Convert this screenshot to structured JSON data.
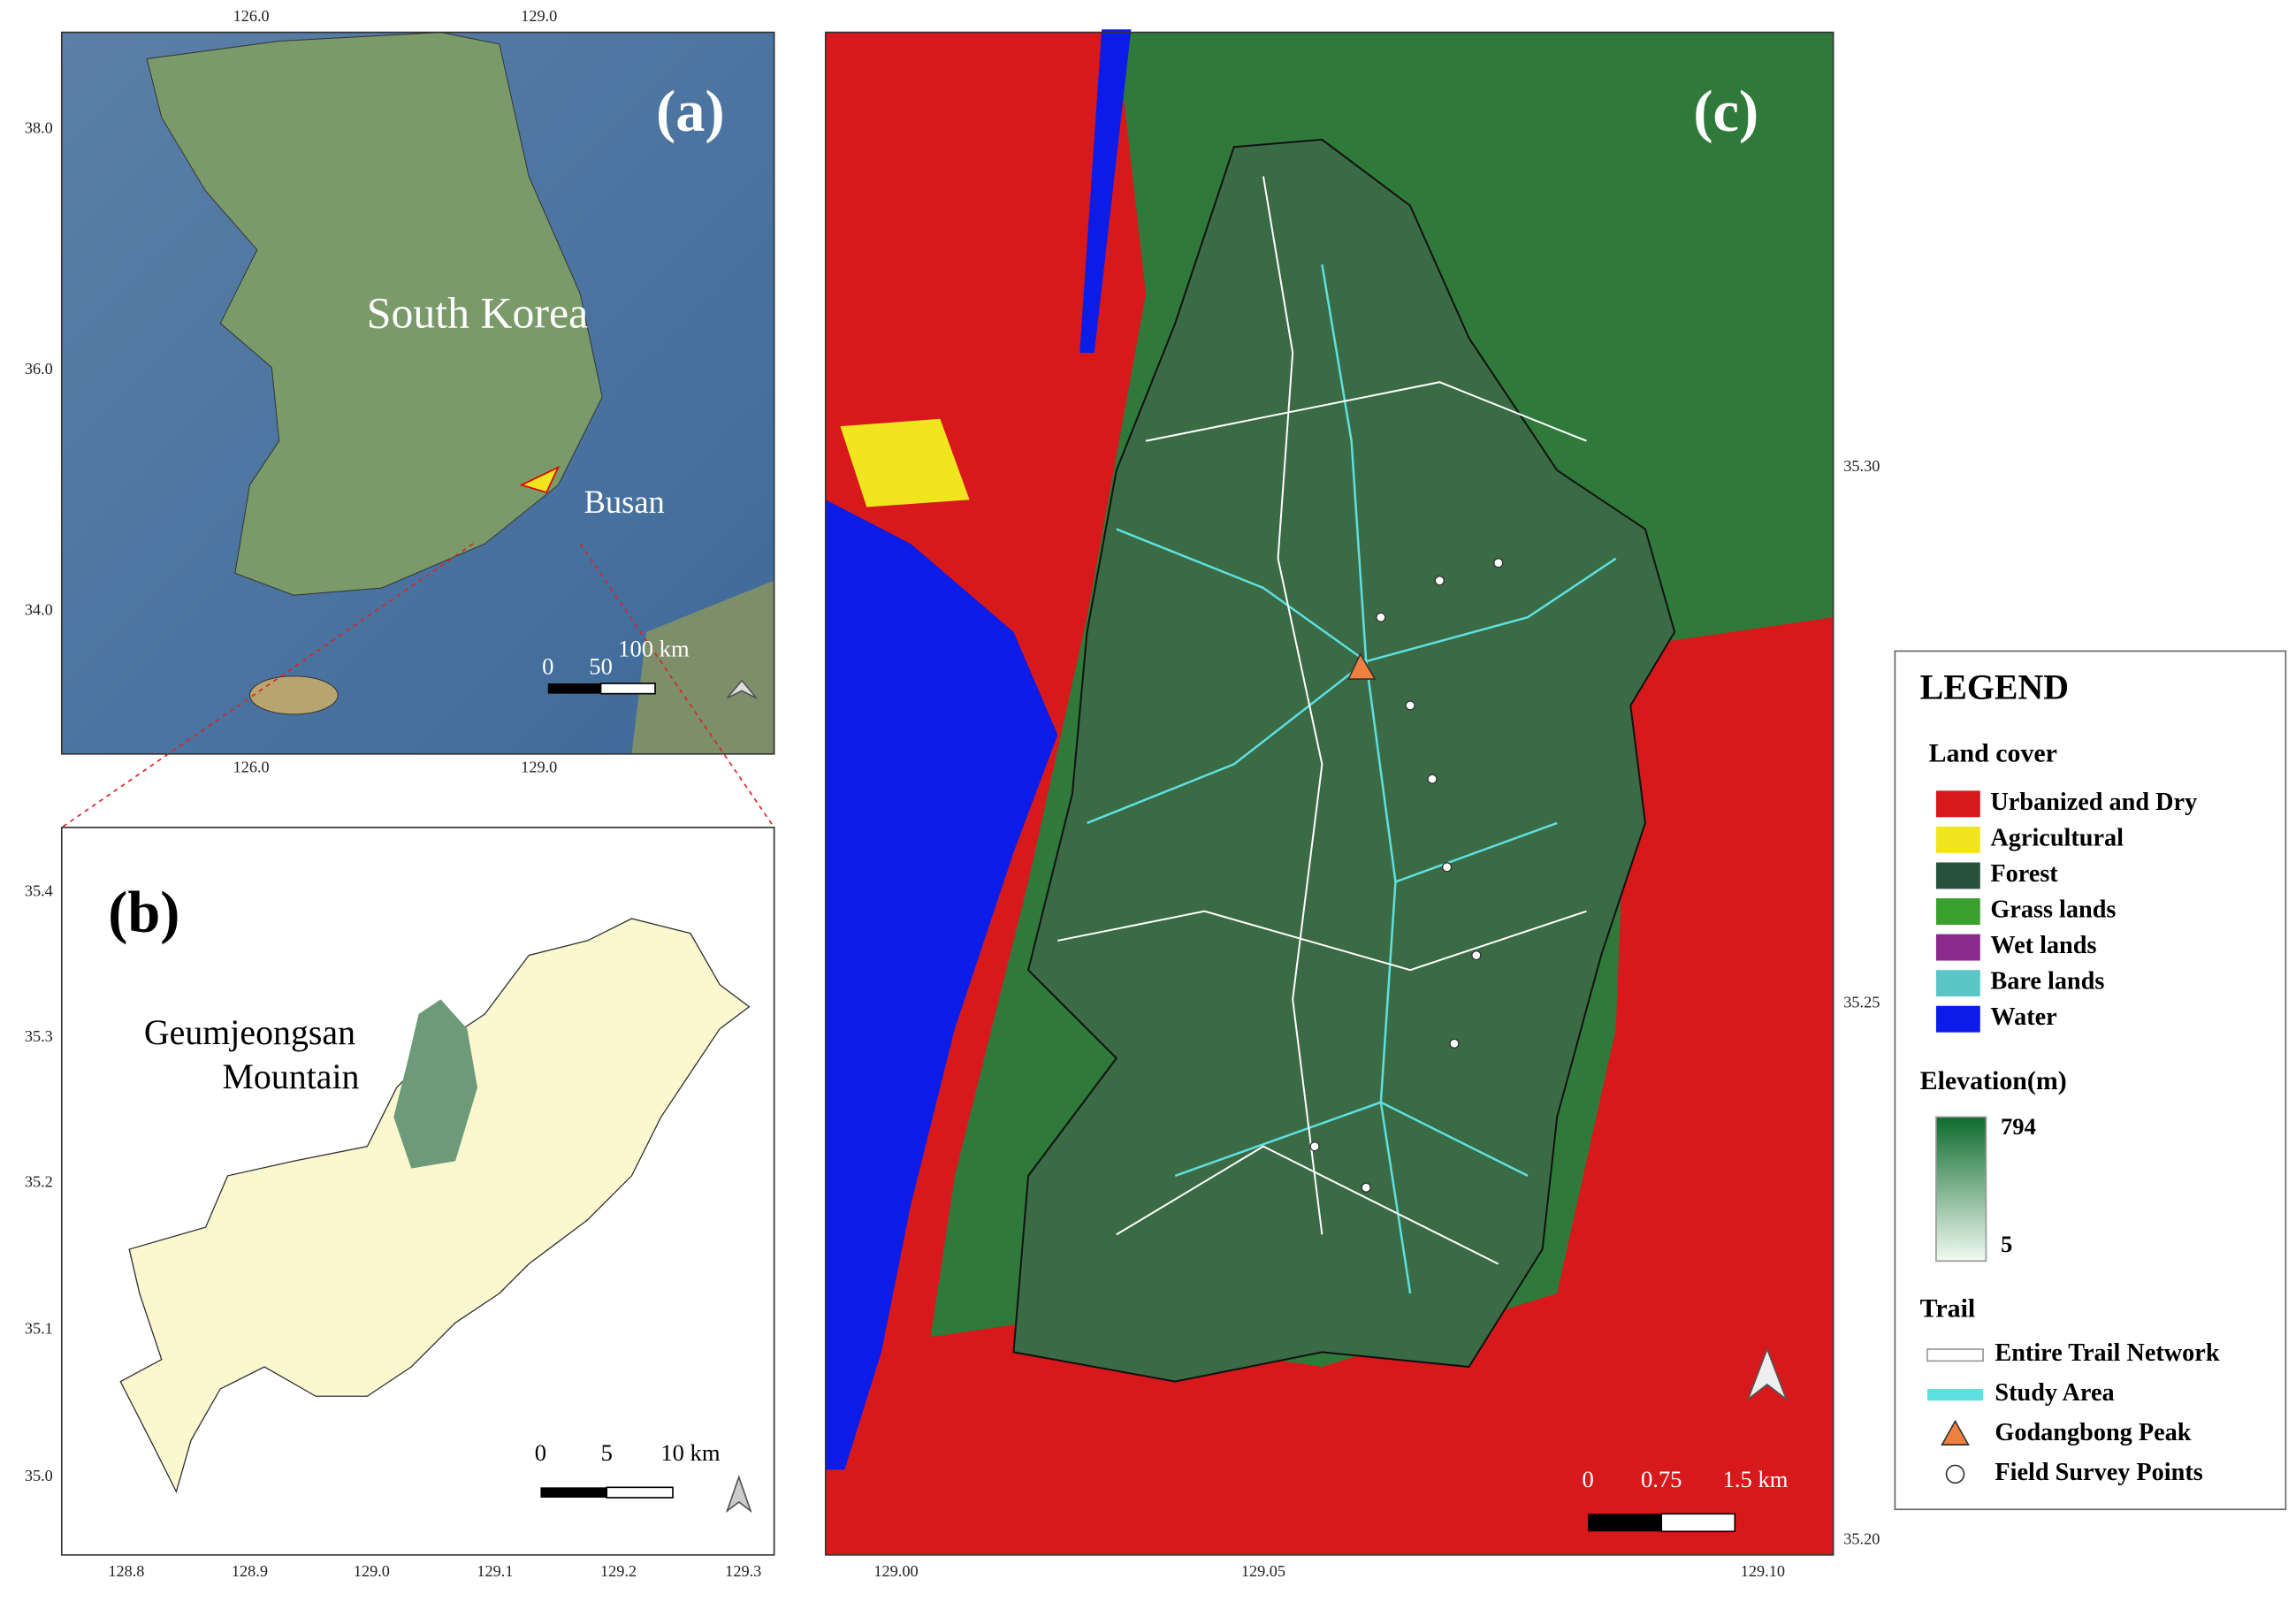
{
  "panels": {
    "a": {
      "label": "(a)",
      "country": "South Korea",
      "city": "Busan",
      "xticks": [
        "126.0",
        "129.0"
      ],
      "yticks": [
        "38.0",
        "36.0",
        "34.0"
      ],
      "scale": [
        "0",
        "50",
        "100 km"
      ]
    },
    "b": {
      "label": "(b)",
      "place": [
        "Geumjeongsan",
        "Mountain"
      ],
      "xticks": [
        "128.8",
        "128.9",
        "129.0",
        "129.1",
        "129.2",
        "129.3"
      ],
      "yticks": [
        "35.4",
        "35.3",
        "35.2",
        "35.1",
        "35.0"
      ],
      "scale": [
        "0",
        "5",
        "10 km"
      ]
    },
    "c": {
      "label": "(c)",
      "xticks": [
        "129.00",
        "129.05",
        "129.10"
      ],
      "yticks": [
        "35.30",
        "35.25",
        "35.20"
      ],
      "scale": [
        "0",
        "0.75",
        "1.5 km"
      ]
    }
  },
  "legend": {
    "title": "LEGEND",
    "land_cover": {
      "title": "Land cover",
      "items": [
        {
          "name": "Urbanized and Dry",
          "color": "#d7191c"
        },
        {
          "name": "Agricultural",
          "color": "#f0e51e"
        },
        {
          "name": "Forest",
          "color": "#27513a"
        },
        {
          "name": "Grass lands",
          "color": "#3aa02e"
        },
        {
          "name": "Wet lands",
          "color": "#8a2a8e"
        },
        {
          "name": "Bare lands",
          "color": "#5bc6c6"
        },
        {
          "name": "Water",
          "color": "#0b1be8"
        }
      ]
    },
    "elevation": {
      "title": "Elevation(m)",
      "max": "794",
      "min": "5"
    },
    "trail": {
      "title": "Trail",
      "items": [
        "Entire Trail Network",
        "Study Area",
        "Godangbong Peak",
        "Field Survey Points"
      ]
    }
  }
}
